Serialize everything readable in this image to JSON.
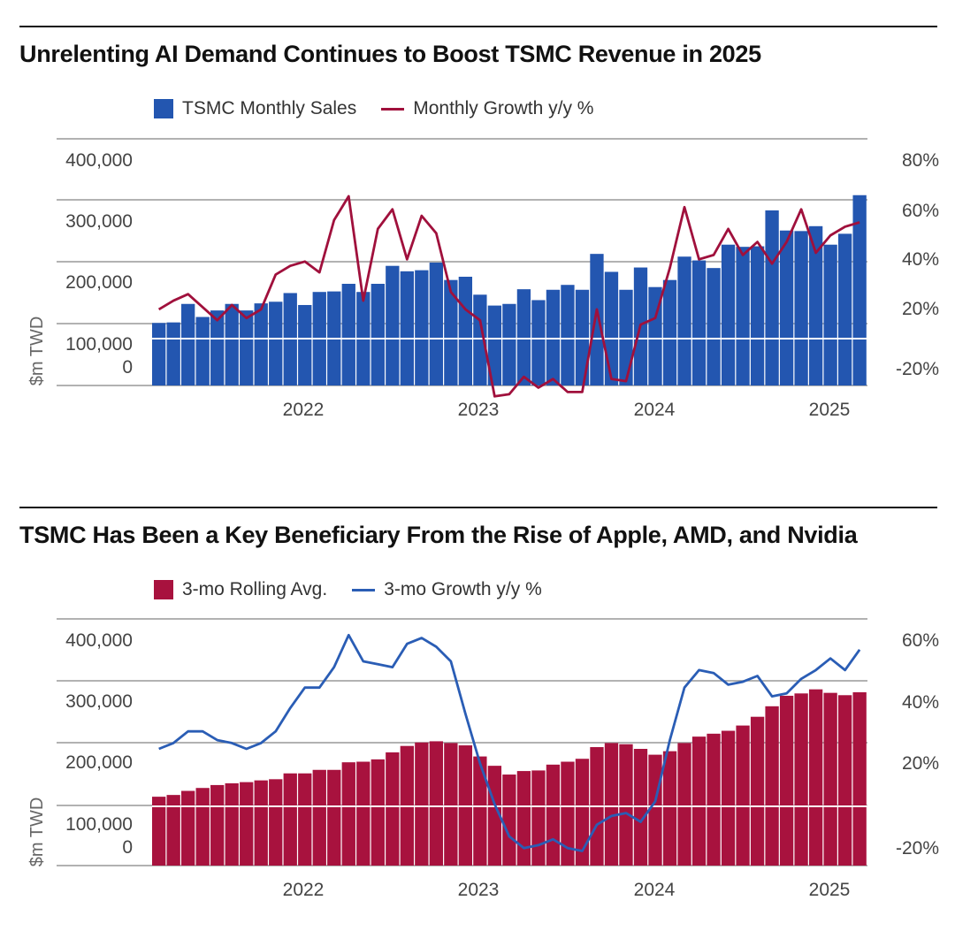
{
  "colors": {
    "bar_blue": "#2356b0",
    "line_maroon": "#a0103c",
    "bar_maroon": "#a8123e",
    "line_blue": "#2a5db5",
    "axis_gray": "#555555"
  },
  "chart_data": [
    {
      "type": "bar",
      "title": "Unrelenting AI Demand Continues to Boost TSMC Revenue in 2025",
      "ylabel": "$m TWD",
      "ylim": [
        0,
        400000
      ],
      "y2lim": [
        -20,
        80
      ],
      "y_ticks": [
        "400,000",
        "300,000",
        "200,000",
        "100,000",
        "0"
      ],
      "y2_ticks": [
        "80%",
        "60%",
        "40%",
        "20%",
        "-20%"
      ],
      "x_ticks": [
        "2022",
        "2023",
        "2024",
        "2025"
      ],
      "grid": true,
      "legend_position": "top-left",
      "series": [
        {
          "name": "TSMC Monthly Sales",
          "kind": "bar",
          "axis": "left",
          "values": [
            115000,
            116000,
            150000,
            126000,
            138000,
            150000,
            138000,
            151000,
            154000,
            170000,
            148000,
            172000,
            173000,
            187000,
            172000,
            187000,
            220000,
            210000,
            212000,
            226000,
            194000,
            200000,
            167000,
            147000,
            150000,
            177000,
            157000,
            176000,
            185000,
            176000,
            242000,
            209000,
            176000,
            217000,
            181000,
            194000,
            237000,
            230000,
            216000,
            259000,
            255000,
            256000,
            322000,
            285000,
            284000,
            293000,
            259000,
            279000,
            350000
          ]
        },
        {
          "name": "Monthly Growth y/y %",
          "kind": "line",
          "axis": "right",
          "values": [
            15,
            19,
            22,
            16,
            10,
            17,
            11,
            15,
            31,
            35,
            37,
            32,
            56,
            67,
            19,
            52,
            61,
            38,
            58,
            50,
            23,
            15,
            10,
            -25,
            -24,
            -16,
            -21,
            -17,
            -23,
            -23,
            15,
            -17,
            -18,
            8,
            11,
            34,
            62,
            38,
            40,
            52,
            40,
            46,
            36,
            46,
            61,
            41,
            49,
            53,
            55
          ]
        }
      ]
    },
    {
      "type": "bar",
      "title": "TSMC Has Been a Key Beneficiary From the Rise of Apple, AMD, and Nvidia",
      "ylabel": "$m TWD",
      "ylim": [
        0,
        400000
      ],
      "y2lim": [
        -20,
        60
      ],
      "y_ticks": [
        "400,000",
        "300,000",
        "200,000",
        "100,000",
        "0"
      ],
      "y2_ticks": [
        "60%",
        "40%",
        "20%",
        "-20%"
      ],
      "x_ticks": [
        "2022",
        "2023",
        "2024",
        "2025"
      ],
      "grid": true,
      "legend_position": "top-left",
      "series": [
        {
          "name": "3-mo Rolling Avg.",
          "kind": "bar",
          "axis": "left",
          "values": [
            118000,
            121000,
            128000,
            133000,
            138000,
            141000,
            143000,
            146000,
            148000,
            158000,
            158000,
            164000,
            164000,
            177000,
            178000,
            182000,
            194000,
            205000,
            211000,
            213000,
            210000,
            206000,
            187000,
            171000,
            156000,
            162000,
            163000,
            173000,
            178000,
            183000,
            203000,
            210000,
            208000,
            200000,
            190000,
            196000,
            210000,
            221000,
            226000,
            231000,
            240000,
            255000,
            273000,
            291000,
            295000,
            302000,
            296000,
            292000,
            297000
          ]
        },
        {
          "name": "3-mo Growth y/y %",
          "kind": "line",
          "axis": "right",
          "values": [
            20,
            22,
            26,
            26,
            23,
            22,
            20,
            22,
            26,
            34,
            41,
            41,
            48,
            59,
            50,
            49,
            48,
            56,
            58,
            55,
            50,
            32,
            15,
            1,
            -10,
            -14,
            -13,
            -11,
            -14,
            -15,
            -6,
            -3,
            -2,
            -5,
            2,
            23,
            41,
            47,
            46,
            42,
            43,
            45,
            38,
            39,
            44,
            47,
            51,
            47,
            54
          ]
        }
      ]
    }
  ]
}
